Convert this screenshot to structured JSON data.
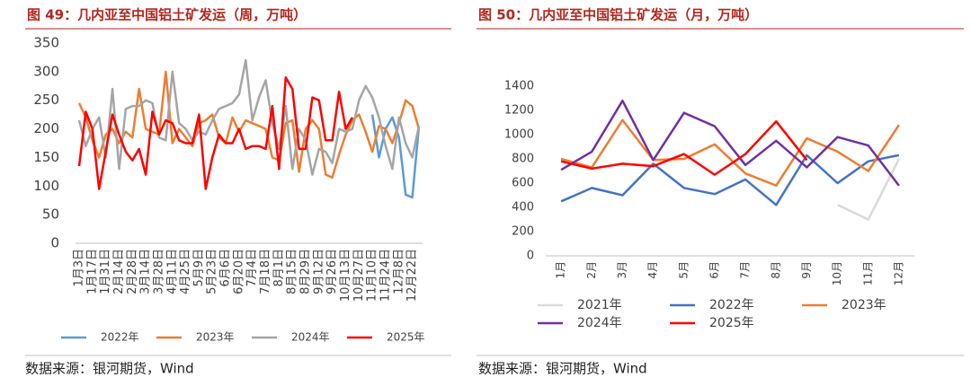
{
  "chart_data": [
    {
      "type": "line",
      "title": "图 49：几内亚至中国铝土矿发运（周，万吨）",
      "source": "数据来源：银河期货，Wind",
      "categories": [
        "1月3日",
        null,
        "1月17日",
        null,
        "1月31日",
        null,
        "2月14日",
        null,
        "2月28日",
        null,
        "3月14日",
        null,
        "3月28日",
        null,
        "4月11日",
        null,
        "4月25日",
        null,
        "5月9日",
        null,
        "5月23日",
        null,
        "6月6日",
        null,
        "6月20日",
        null,
        "7月4日",
        null,
        "7月18日",
        null,
        "8月1日",
        null,
        "8月15日",
        null,
        "8月29日",
        null,
        "9月12日",
        null,
        "9月26日",
        null,
        "10月13日",
        null,
        "10月27日",
        null,
        "11月10日",
        null,
        "11月24日",
        null,
        "12月8日",
        null,
        "12月22日",
        null
      ],
      "series": [
        {
          "name": "2022年",
          "color": "#5b9bd5",
          "values": [
            null,
            null,
            null,
            null,
            null,
            null,
            null,
            null,
            null,
            null,
            null,
            null,
            null,
            null,
            null,
            null,
            null,
            null,
            null,
            null,
            null,
            null,
            null,
            null,
            null,
            null,
            null,
            null,
            null,
            null,
            null,
            null,
            null,
            null,
            null,
            null,
            null,
            null,
            null,
            null,
            null,
            null,
            null,
            null,
            225,
            150,
            200,
            220,
            185,
            85,
            80,
            205
          ]
        },
        {
          "name": "2023年",
          "color": "#ed7d31",
          "values": [
            245,
            220,
            180,
            150,
            190,
            200,
            175,
            195,
            185,
            270,
            200,
            195,
            190,
            300,
            175,
            200,
            185,
            170,
            210,
            215,
            225,
            185,
            175,
            220,
            195,
            215,
            210,
            205,
            200,
            150,
            145,
            210,
            215,
            125,
            200,
            215,
            200,
            120,
            115,
            155,
            190,
            215,
            225,
            195,
            160,
            205,
            200,
            175,
            210,
            250,
            240,
            200
          ]
        },
        {
          "name": "2024年",
          "color": "#a5a5a5",
          "values": [
            215,
            170,
            200,
            220,
            150,
            270,
            130,
            235,
            240,
            240,
            250,
            245,
            185,
            180,
            300,
            210,
            200,
            180,
            195,
            190,
            215,
            235,
            240,
            245,
            260,
            320,
            215,
            255,
            285,
            210,
            165,
            240,
            130,
            200,
            180,
            120,
            165,
            160,
            140,
            200,
            195,
            200,
            250,
            275,
            255,
            220,
            170,
            130,
            220,
            175,
            150,
            205
          ]
        },
        {
          "name": "2025年",
          "color": "#ff0000",
          "values": [
            135,
            230,
            200,
            95,
            160,
            225,
            190,
            160,
            145,
            165,
            120,
            230,
            190,
            215,
            210,
            180,
            175,
            175,
            225,
            95,
            150,
            190,
            175,
            175,
            200,
            165,
            170,
            170,
            165,
            240,
            130,
            290,
            270,
            165,
            165,
            255,
            250,
            180,
            180,
            265,
            200,
            220,
            null,
            null,
            null,
            null,
            null,
            null,
            null,
            null,
            null,
            null
          ]
        }
      ],
      "ylim": [
        0,
        350
      ],
      "yticks": [
        0,
        50,
        100,
        150,
        200,
        250,
        300,
        350
      ],
      "grid": false,
      "legend": "bottom"
    },
    {
      "type": "line",
      "title": "图 50：几内亚至中国铝土矿发运（月，万吨）",
      "source": "数据来源：银河期货，Wind",
      "categories": [
        "1月",
        "2月",
        "3月",
        "4月",
        "5月",
        "6月",
        "7月",
        "8月",
        "9月",
        "10月",
        "11月",
        "12月"
      ],
      "series": [
        {
          "name": "2021年",
          "color": "#d9d9d9",
          "values": [
            null,
            null,
            null,
            null,
            null,
            null,
            null,
            null,
            null,
            420,
            300,
            800
          ]
        },
        {
          "name": "2022年",
          "color": "#4472c4",
          "values": [
            450,
            560,
            500,
            760,
            560,
            510,
            630,
            420,
            830,
            600,
            780,
            830
          ]
        },
        {
          "name": "2023年",
          "color": "#ed7d31",
          "values": [
            800,
            730,
            1120,
            790,
            800,
            920,
            680,
            580,
            970,
            860,
            700,
            1080
          ]
        },
        {
          "name": "2024年",
          "color": "#7030a0",
          "values": [
            710,
            860,
            1280,
            790,
            1180,
            1070,
            750,
            950,
            730,
            980,
            910,
            580
          ]
        },
        {
          "name": "2025年",
          "color": "#ff0000",
          "values": [
            780,
            720,
            760,
            740,
            840,
            670,
            840,
            1110,
            790,
            null,
            null,
            null
          ]
        }
      ],
      "ylim": [
        0,
        1400
      ],
      "yticks": [
        0,
        200,
        400,
        600,
        800,
        1000,
        1200,
        1400
      ],
      "grid": false,
      "legend": "bottom"
    }
  ]
}
